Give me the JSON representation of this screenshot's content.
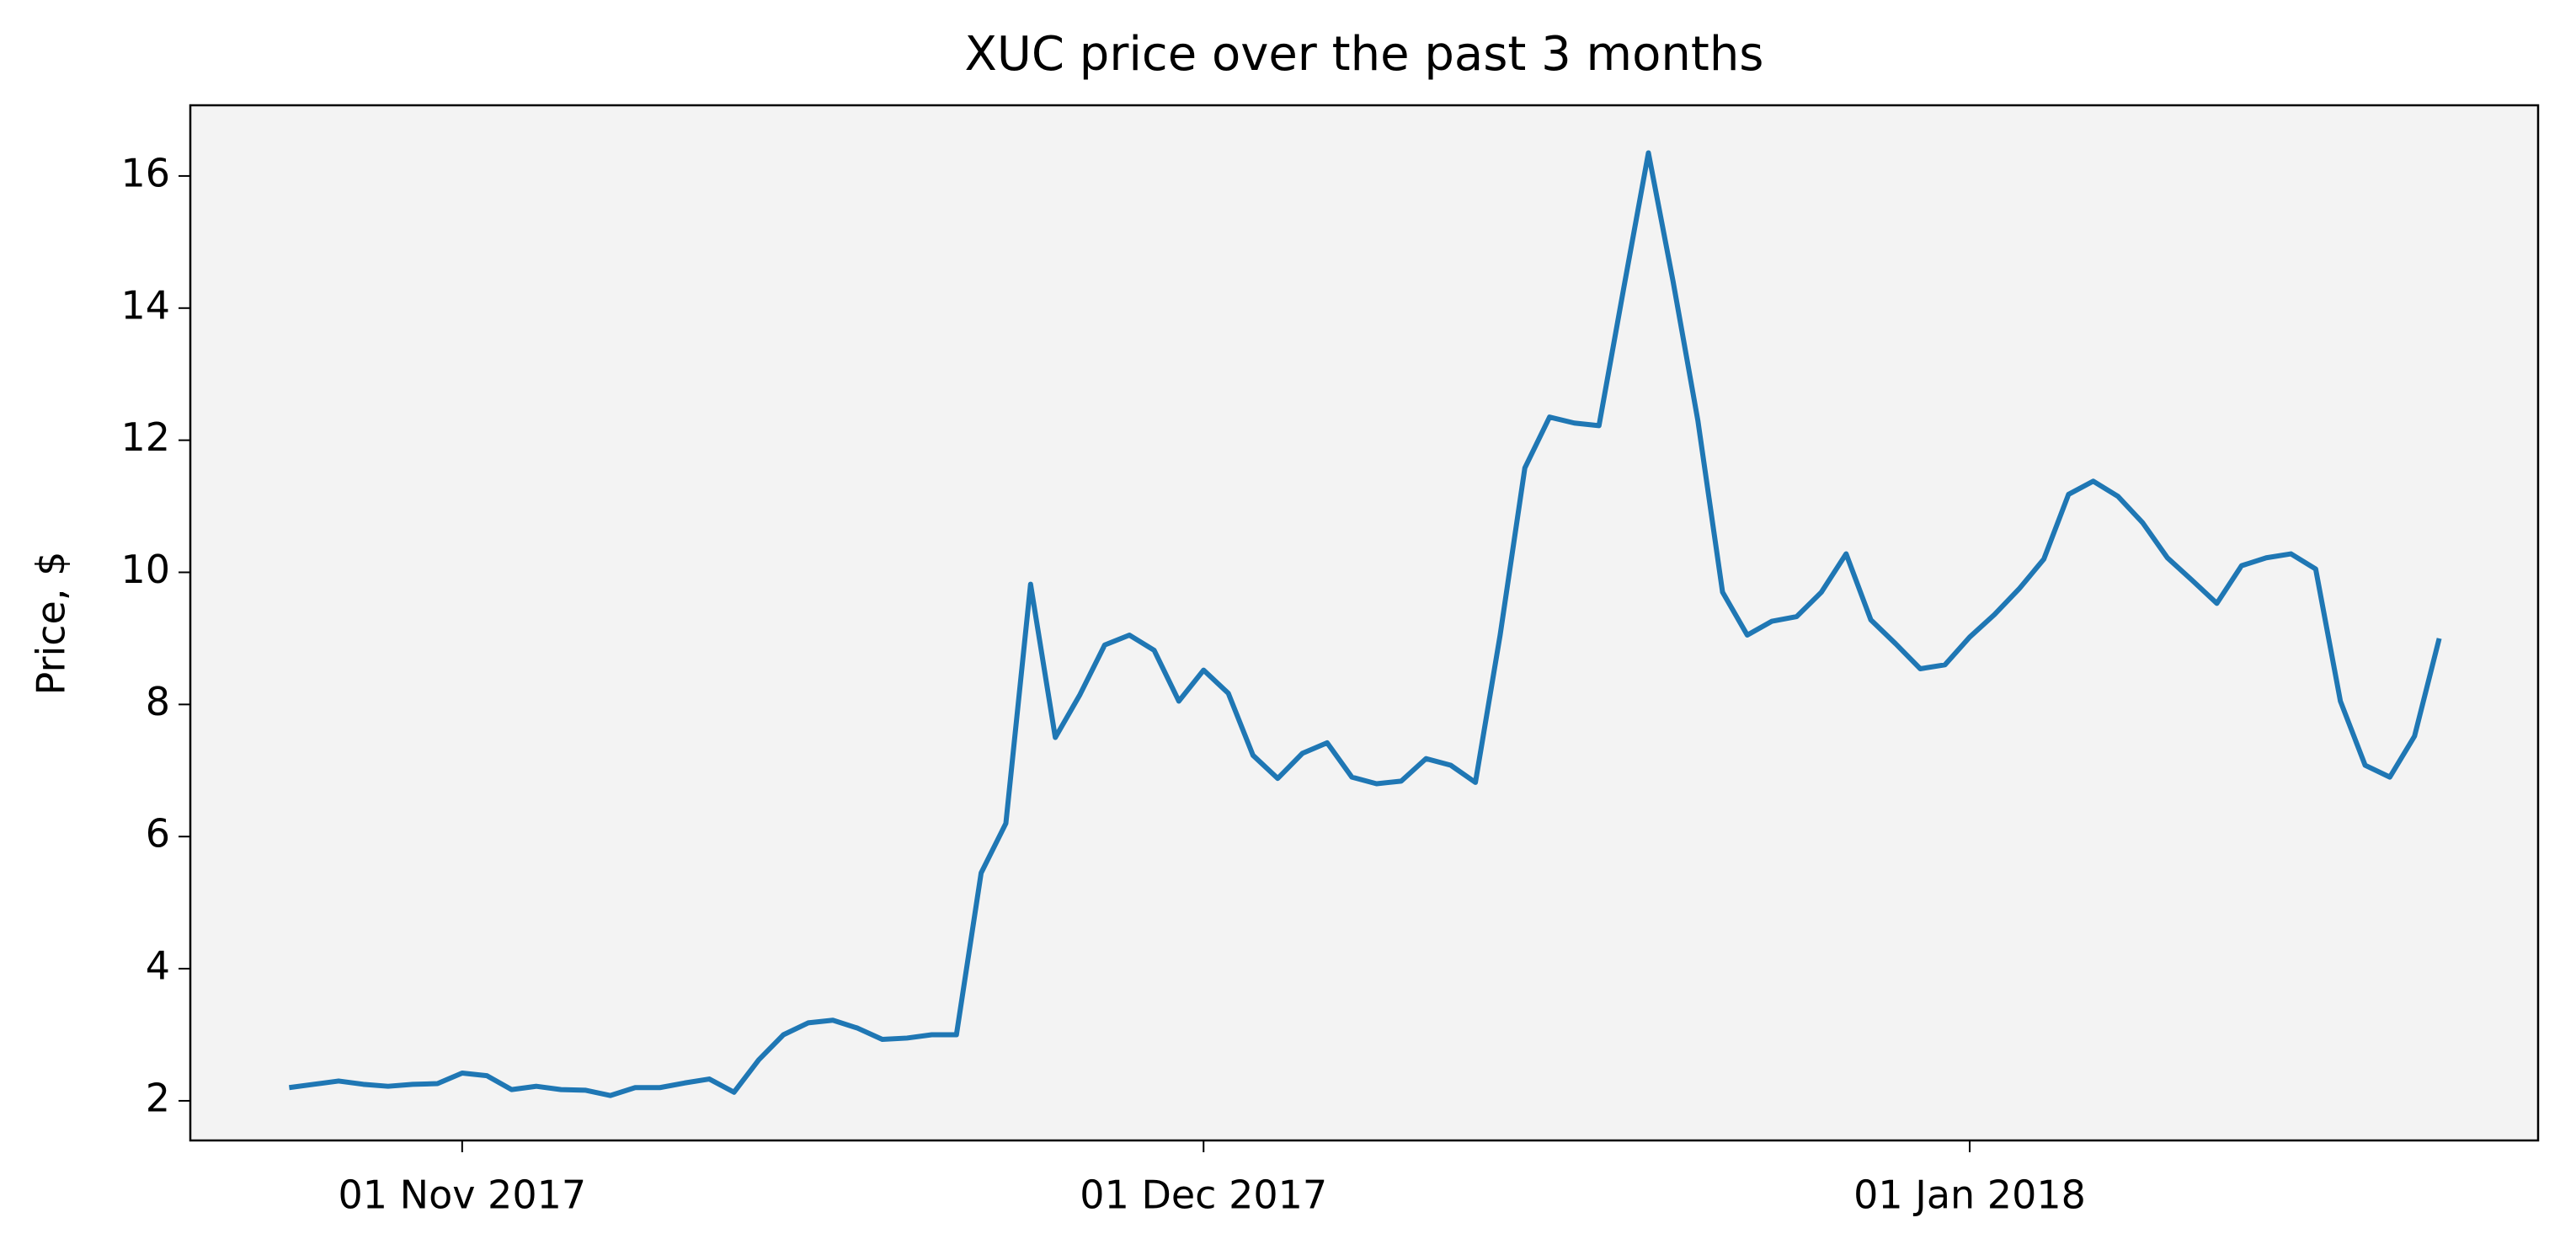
{
  "chart_data": {
    "type": "line",
    "title": "XUC price over the past 3 months",
    "y_label": "Price, $",
    "x": [
      "2017-10-25",
      "2017-10-26",
      "2017-10-27",
      "2017-10-28",
      "2017-10-29",
      "2017-10-30",
      "2017-10-31",
      "2017-11-01",
      "2017-11-02",
      "2017-11-03",
      "2017-11-04",
      "2017-11-05",
      "2017-11-06",
      "2017-11-07",
      "2017-11-08",
      "2017-11-09",
      "2017-11-10",
      "2017-11-11",
      "2017-11-12",
      "2017-11-13",
      "2017-11-14",
      "2017-11-15",
      "2017-11-16",
      "2017-11-17",
      "2017-11-18",
      "2017-11-19",
      "2017-11-20",
      "2017-11-21",
      "2017-11-22",
      "2017-11-23",
      "2017-11-24",
      "2017-11-25",
      "2017-11-26",
      "2017-11-27",
      "2017-11-28",
      "2017-11-29",
      "2017-11-30",
      "2017-12-01",
      "2017-12-02",
      "2017-12-03",
      "2017-12-04",
      "2017-12-05",
      "2017-12-06",
      "2017-12-07",
      "2017-12-08",
      "2017-12-09",
      "2017-12-10",
      "2017-12-11",
      "2017-12-12",
      "2017-12-13",
      "2017-12-14",
      "2017-12-15",
      "2017-12-16",
      "2017-12-17",
      "2017-12-18",
      "2017-12-19",
      "2017-12-20",
      "2017-12-21",
      "2017-12-22",
      "2017-12-23",
      "2017-12-24",
      "2017-12-25",
      "2017-12-26",
      "2017-12-27",
      "2017-12-28",
      "2017-12-29",
      "2017-12-30",
      "2017-12-31",
      "2018-01-01",
      "2018-01-02",
      "2018-01-03",
      "2018-01-04",
      "2018-01-05",
      "2018-01-06",
      "2018-01-07",
      "2018-01-08",
      "2018-01-09",
      "2018-01-10",
      "2018-01-11",
      "2018-01-12",
      "2018-01-13",
      "2018-01-14",
      "2018-01-15",
      "2018-01-16",
      "2018-01-17",
      "2018-01-18",
      "2018-01-19",
      "2018-01-20"
    ],
    "series": [
      {
        "name": "XUC",
        "color": "#1f77b4",
        "values": [
          2.2,
          2.25,
          2.3,
          2.25,
          2.22,
          2.25,
          2.26,
          2.42,
          2.38,
          2.17,
          2.22,
          2.17,
          2.16,
          2.08,
          2.2,
          2.2,
          2.27,
          2.33,
          2.13,
          2.62,
          3.0,
          3.18,
          3.22,
          3.1,
          2.93,
          2.95,
          3.0,
          3.0,
          5.45,
          6.2,
          9.82,
          7.5,
          8.15,
          8.9,
          9.05,
          8.82,
          8.05,
          8.52,
          8.17,
          7.23,
          6.88,
          7.26,
          7.42,
          6.9,
          6.8,
          6.84,
          7.18,
          7.08,
          6.82,
          9.05,
          11.58,
          12.35,
          12.26,
          12.22,
          14.3,
          16.35,
          14.4,
          12.3,
          9.7,
          9.05,
          9.26,
          9.33,
          9.7,
          10.28,
          9.28,
          8.92,
          8.54,
          8.6,
          9.02,
          9.36,
          9.75,
          10.2,
          11.18,
          11.38,
          11.15,
          10.75,
          10.22,
          9.88,
          9.53,
          10.1,
          10.22,
          10.28,
          10.05,
          8.05,
          7.08,
          6.9,
          7.52,
          9.0
        ]
      }
    ],
    "xlim": [
      "2017-10-21",
      "2018-01-24"
    ],
    "xticks": [
      {
        "value": "2017-11-01",
        "label": "01 Nov 2017"
      },
      {
        "value": "2017-12-01",
        "label": "01 Dec 2017"
      },
      {
        "value": "2018-01-01",
        "label": "01 Jan 2018"
      }
    ],
    "ylim": [
      1.4,
      17.07
    ],
    "yticks": [
      2,
      4,
      6,
      8,
      10,
      12,
      14,
      16
    ],
    "grid": false,
    "background": "#f3f3f3"
  }
}
